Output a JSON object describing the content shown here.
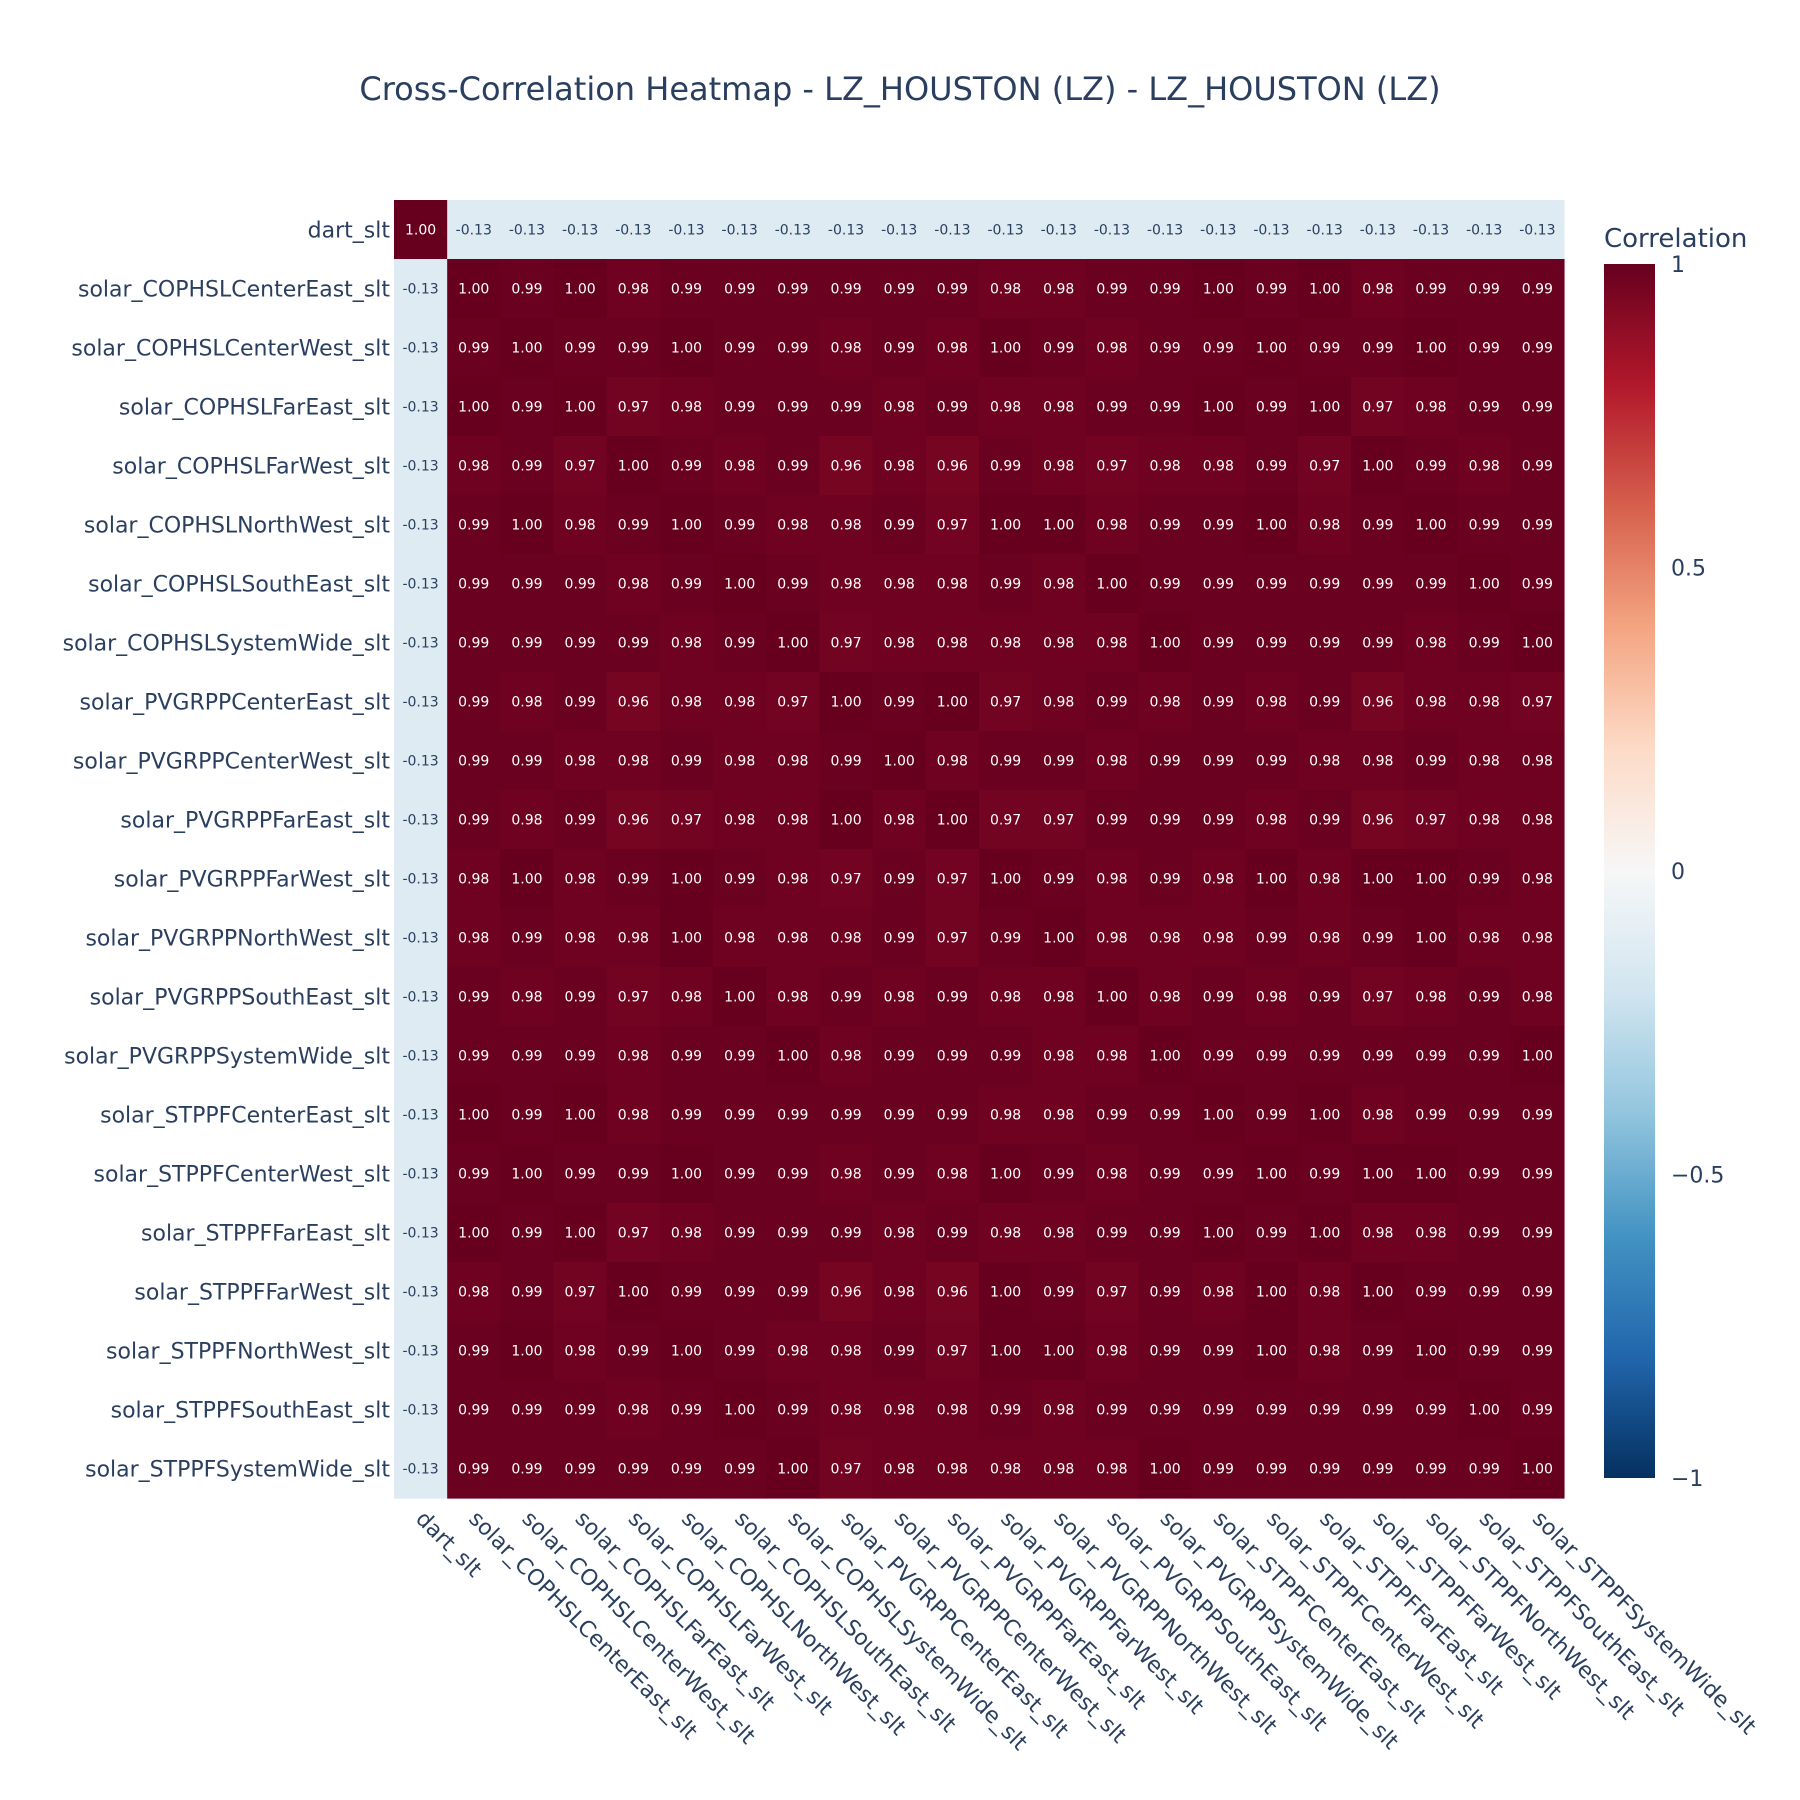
{
  "chart_data": {
    "type": "heatmap",
    "title": "Cross-Correlation Heatmap - LZ_HOUSTON (LZ) - LZ_HOUSTON (LZ)",
    "labels": [
      "dart_slt",
      "solar_COPHSLCenterEast_slt",
      "solar_COPHSLCenterWest_slt",
      "solar_COPHSLFarEast_slt",
      "solar_COPHSLFarWest_slt",
      "solar_COPHSLNorthWest_slt",
      "solar_COPHSLSouthEast_slt",
      "solar_COPHSLSystemWide_slt",
      "solar_PVGRPPCenterEast_slt",
      "solar_PVGRPPCenterWest_slt",
      "solar_PVGRPPFarEast_slt",
      "solar_PVGRPPFarWest_slt",
      "solar_PVGRPPNorthWest_slt",
      "solar_PVGRPPSouthEast_slt",
      "solar_PVGRPPSystemWide_slt",
      "solar_STPPFCenterEast_slt",
      "solar_STPPFCenterWest_slt",
      "solar_STPPFFarEast_slt",
      "solar_STPPFFarWest_slt",
      "solar_STPPFNorthWest_slt",
      "solar_STPPFSouthEast_slt",
      "solar_STPPFSystemWide_slt"
    ],
    "values": [
      [
        1.0,
        -0.13,
        -0.13,
        -0.13,
        -0.13,
        -0.13,
        -0.13,
        -0.13,
        -0.13,
        -0.13,
        -0.13,
        -0.13,
        -0.13,
        -0.13,
        -0.13,
        -0.13,
        -0.13,
        -0.13,
        -0.13,
        -0.13,
        -0.13,
        -0.13
      ],
      [
        -0.13,
        1.0,
        0.99,
        1.0,
        0.98,
        0.99,
        0.99,
        0.99,
        0.99,
        0.99,
        0.99,
        0.98,
        0.98,
        0.99,
        0.99,
        1.0,
        0.99,
        1.0,
        0.98,
        0.99,
        0.99,
        0.99
      ],
      [
        -0.13,
        0.99,
        1.0,
        0.99,
        0.99,
        1.0,
        0.99,
        0.99,
        0.98,
        0.99,
        0.98,
        1.0,
        0.99,
        0.98,
        0.99,
        0.99,
        1.0,
        0.99,
        0.99,
        1.0,
        0.99,
        0.99
      ],
      [
        -0.13,
        1.0,
        0.99,
        1.0,
        0.97,
        0.98,
        0.99,
        0.99,
        0.99,
        0.98,
        0.99,
        0.98,
        0.98,
        0.99,
        0.99,
        1.0,
        0.99,
        1.0,
        0.97,
        0.98,
        0.99,
        0.99
      ],
      [
        -0.13,
        0.98,
        0.99,
        0.97,
        1.0,
        0.99,
        0.98,
        0.99,
        0.96,
        0.98,
        0.96,
        0.99,
        0.98,
        0.97,
        0.98,
        0.98,
        0.99,
        0.97,
        1.0,
        0.99,
        0.98,
        0.99
      ],
      [
        -0.13,
        0.99,
        1.0,
        0.98,
        0.99,
        1.0,
        0.99,
        0.98,
        0.98,
        0.99,
        0.97,
        1.0,
        1.0,
        0.98,
        0.99,
        0.99,
        1.0,
        0.98,
        0.99,
        1.0,
        0.99,
        0.99
      ],
      [
        -0.13,
        0.99,
        0.99,
        0.99,
        0.98,
        0.99,
        1.0,
        0.99,
        0.98,
        0.98,
        0.98,
        0.99,
        0.98,
        1.0,
        0.99,
        0.99,
        0.99,
        0.99,
        0.99,
        0.99,
        1.0,
        0.99
      ],
      [
        -0.13,
        0.99,
        0.99,
        0.99,
        0.99,
        0.98,
        0.99,
        1.0,
        0.97,
        0.98,
        0.98,
        0.98,
        0.98,
        0.98,
        1.0,
        0.99,
        0.99,
        0.99,
        0.99,
        0.98,
        0.99,
        1.0
      ],
      [
        -0.13,
        0.99,
        0.98,
        0.99,
        0.96,
        0.98,
        0.98,
        0.97,
        1.0,
        0.99,
        1.0,
        0.97,
        0.98,
        0.99,
        0.98,
        0.99,
        0.98,
        0.99,
        0.96,
        0.98,
        0.98,
        0.97
      ],
      [
        -0.13,
        0.99,
        0.99,
        0.98,
        0.98,
        0.99,
        0.98,
        0.98,
        0.99,
        1.0,
        0.98,
        0.99,
        0.99,
        0.98,
        0.99,
        0.99,
        0.99,
        0.98,
        0.98,
        0.99,
        0.98,
        0.98
      ],
      [
        -0.13,
        0.99,
        0.98,
        0.99,
        0.96,
        0.97,
        0.98,
        0.98,
        1.0,
        0.98,
        1.0,
        0.97,
        0.97,
        0.99,
        0.99,
        0.99,
        0.98,
        0.99,
        0.96,
        0.97,
        0.98,
        0.98
      ],
      [
        -0.13,
        0.98,
        1.0,
        0.98,
        0.99,
        1.0,
        0.99,
        0.98,
        0.97,
        0.99,
        0.97,
        1.0,
        0.99,
        0.98,
        0.99,
        0.98,
        1.0,
        0.98,
        1.0,
        1.0,
        0.99,
        0.98
      ],
      [
        -0.13,
        0.98,
        0.99,
        0.98,
        0.98,
        1.0,
        0.98,
        0.98,
        0.98,
        0.99,
        0.97,
        0.99,
        1.0,
        0.98,
        0.98,
        0.98,
        0.99,
        0.98,
        0.99,
        1.0,
        0.98,
        0.98
      ],
      [
        -0.13,
        0.99,
        0.98,
        0.99,
        0.97,
        0.98,
        1.0,
        0.98,
        0.99,
        0.98,
        0.99,
        0.98,
        0.98,
        1.0,
        0.98,
        0.99,
        0.98,
        0.99,
        0.97,
        0.98,
        0.99,
        0.98
      ],
      [
        -0.13,
        0.99,
        0.99,
        0.99,
        0.98,
        0.99,
        0.99,
        1.0,
        0.98,
        0.99,
        0.99,
        0.99,
        0.98,
        0.98,
        1.0,
        0.99,
        0.99,
        0.99,
        0.99,
        0.99,
        0.99,
        1.0
      ],
      [
        -0.13,
        1.0,
        0.99,
        1.0,
        0.98,
        0.99,
        0.99,
        0.99,
        0.99,
        0.99,
        0.99,
        0.98,
        0.98,
        0.99,
        0.99,
        1.0,
        0.99,
        1.0,
        0.98,
        0.99,
        0.99,
        0.99
      ],
      [
        -0.13,
        0.99,
        1.0,
        0.99,
        0.99,
        1.0,
        0.99,
        0.99,
        0.98,
        0.99,
        0.98,
        1.0,
        0.99,
        0.98,
        0.99,
        0.99,
        1.0,
        0.99,
        1.0,
        1.0,
        0.99,
        0.99
      ],
      [
        -0.13,
        1.0,
        0.99,
        1.0,
        0.97,
        0.98,
        0.99,
        0.99,
        0.99,
        0.98,
        0.99,
        0.98,
        0.98,
        0.99,
        0.99,
        1.0,
        0.99,
        1.0,
        0.98,
        0.98,
        0.99,
        0.99
      ],
      [
        -0.13,
        0.98,
        0.99,
        0.97,
        1.0,
        0.99,
        0.99,
        0.99,
        0.96,
        0.98,
        0.96,
        1.0,
        0.99,
        0.97,
        0.99,
        0.98,
        1.0,
        0.98,
        1.0,
        0.99,
        0.99,
        0.99
      ],
      [
        -0.13,
        0.99,
        1.0,
        0.98,
        0.99,
        1.0,
        0.99,
        0.98,
        0.98,
        0.99,
        0.97,
        1.0,
        1.0,
        0.98,
        0.99,
        0.99,
        1.0,
        0.98,
        0.99,
        1.0,
        0.99,
        0.99
      ],
      [
        -0.13,
        0.99,
        0.99,
        0.99,
        0.98,
        0.99,
        1.0,
        0.99,
        0.98,
        0.98,
        0.98,
        0.99,
        0.98,
        0.99,
        0.99,
        0.99,
        0.99,
        0.99,
        0.99,
        0.99,
        1.0,
        0.99
      ],
      [
        -0.13,
        0.99,
        0.99,
        0.99,
        0.99,
        0.99,
        0.99,
        1.0,
        0.97,
        0.98,
        0.98,
        0.98,
        0.98,
        0.98,
        1.0,
        0.99,
        0.99,
        0.99,
        0.99,
        0.99,
        0.99,
        1.0
      ]
    ],
    "zlim": [
      -1,
      1
    ],
    "colorscale": "RdBu",
    "colorbar": {
      "title": "Correlation",
      "ticks": [
        1,
        0.5,
        0,
        -0.5,
        -1
      ],
      "tick_labels": [
        "1",
        "0.5",
        "0",
        "−0.5",
        "−1"
      ]
    },
    "colors": {
      "title_text": "#2a3f5f",
      "cell_text_light": "#ffffff",
      "cell_text_dark": "#2a3f5f",
      "background": "#ffffff"
    }
  }
}
